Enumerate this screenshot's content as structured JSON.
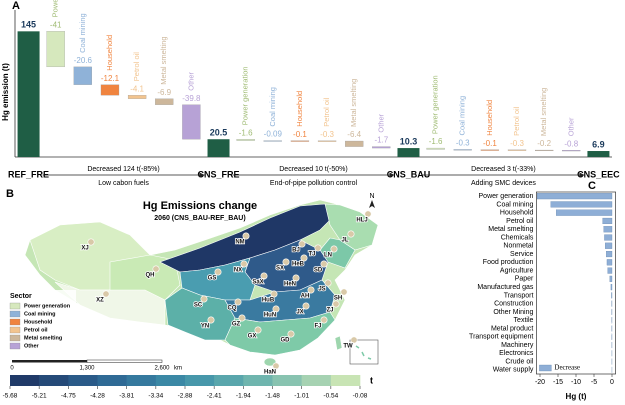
{
  "chart_data": [
    {
      "type": "waterfall",
      "panel_label": "A",
      "y_label": "Hg emission (t)",
      "categories": [
        "REF_FRE",
        "Power generation",
        "Coal mining",
        "Household",
        "Petrol oil",
        "Metal smelting",
        "Other",
        "CNS_FRE",
        "Power generation",
        "Coal mining",
        "Household",
        "Petrol oil",
        "Metal smelting",
        "Other",
        "CNS_BAU",
        "Power generation",
        "Coal mining",
        "Household",
        "Petrol oil",
        "Metal smelting",
        "Other",
        "CNS_EEC"
      ],
      "values": [
        145,
        -41,
        -20.6,
        -12.1,
        -4.1,
        -6.9,
        -39.8,
        20.5,
        -1.6,
        -0.09,
        -0.1,
        -0.3,
        -6.4,
        -1.7,
        10.3,
        -1.6,
        -0.3,
        -0.1,
        -0.3,
        -0.2,
        -0.8,
        6.9
      ],
      "ylim": [
        0,
        150
      ],
      "total_color": "#1f5e45",
      "step_colors": [
        "#d6e8bd",
        "#8fb2d8",
        "#f0843f",
        "#f2c48f",
        "#cdb79b",
        "#b7a2d6"
      ],
      "annotations": [
        {
          "text": "Decreased 124 t(-85%)",
          "note": "Low cabon fuels"
        },
        {
          "text": "Decreased 10 t(-50%)",
          "note": "End-of-pipe pollution control"
        },
        {
          "text": "Decreased 3 t(-33%)",
          "note": "Adding SMC devices"
        }
      ]
    },
    {
      "type": "map",
      "panel_label": "B",
      "title": "Hg Emissions change",
      "subtitle": "2060 (CNS_BAU-REF_BAU)",
      "north": "N",
      "provinces": [
        "XJ",
        "XZ",
        "QH",
        "NM",
        "HLJ",
        "JL",
        "LN",
        "BJ",
        "TJ",
        "HeB",
        "SX",
        "SD",
        "HeN",
        "SaX",
        "GS",
        "NX",
        "SC",
        "CQ",
        "HuB",
        "AH",
        "JS",
        "SH",
        "ZJ",
        "JX",
        "HuN",
        "GZ",
        "YN",
        "GX",
        "GD",
        "FJ",
        "TW",
        "HaN"
      ],
      "legend_title": "Sector",
      "legend": [
        {
          "name": "Power generation",
          "color": "#d6e8bd"
        },
        {
          "name": "Coal mining",
          "color": "#8fb2d8"
        },
        {
          "name": "Household",
          "color": "#f0843f"
        },
        {
          "name": "Petrol oil",
          "color": "#f2c48f"
        },
        {
          "name": "Metal smelting",
          "color": "#cdb79b"
        },
        {
          "name": "Other",
          "color": "#b7a2d6"
        }
      ],
      "scale_labels": [
        "0",
        "1,300",
        "2,600",
        "km"
      ],
      "colorbar": {
        "ticks": [
          -5.68,
          -5.21,
          -4.75,
          -4.28,
          -3.81,
          -3.34,
          -2.88,
          -2.41,
          -1.94,
          -1.48,
          -1.01,
          -0.54,
          -0.08
        ],
        "unit": "t",
        "colors": [
          "#203a68",
          "#254a78",
          "#2a5a88",
          "#2f6a95",
          "#35799e",
          "#3b88a5",
          "#4797aa",
          "#59a6ac",
          "#6fb5ae",
          "#88c3b0",
          "#a6d2b2",
          "#c8e4b4"
        ]
      }
    },
    {
      "type": "bar",
      "orientation": "horizontal",
      "panel_label": "C",
      "categories": [
        "Power generation",
        "Coal mining",
        "Household",
        "Petrol oil",
        "Metal smelting",
        "Chemicals",
        "Nonmetal",
        "Service",
        "Food production",
        "Agriculture",
        "Paper",
        "Manufactured gas",
        "Transport",
        "Construction",
        "Other Mining",
        "Textile",
        "Metal product",
        "Transport equipment",
        "Machinery",
        "Electronics",
        "Crude oil",
        "Water supply"
      ],
      "series": [
        {
          "name": "Decrease",
          "color": "#8eaed6",
          "values": [
            -20.8,
            -17,
            -15.5,
            -2.6,
            -2.3,
            -2.1,
            -1.9,
            -1.6,
            -1.4,
            -1.2,
            -0.6,
            -0.3,
            -0.15,
            -0.1,
            -0.08,
            -0.06,
            -0.05,
            -0.05,
            -0.04,
            -0.03,
            -0.03,
            -0.02
          ]
        }
      ],
      "xlim": [
        -21,
        1
      ],
      "xticks": [
        -20,
        -15,
        -10,
        -5,
        0
      ],
      "x_label": "Hg (t)",
      "legend_position": "lower-left"
    }
  ]
}
